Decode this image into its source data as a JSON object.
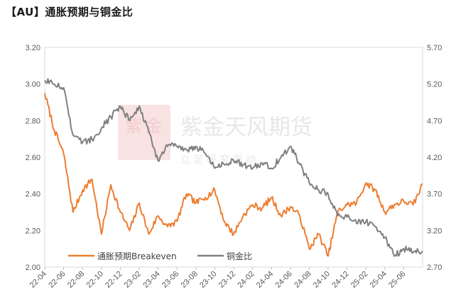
{
  "title": "【AU】通胀预期与铜金比",
  "watermark": {
    "name": "紫金天风期货",
    "slogan": "立 足 研 究 驱 动"
  },
  "chart_data": {
    "type": "line",
    "x_tick_labels": [
      "22-04",
      "22-06",
      "22-08",
      "22-10",
      "22-12",
      "23-02",
      "23-04",
      "23-06",
      "23-08",
      "23-10",
      "23-12",
      "24-02",
      "24-04",
      "24-06",
      "24-08",
      "24-10",
      "24-12",
      "25-02",
      "25-04",
      "25-06"
    ],
    "x_range": [
      "2022-04",
      "2025-08"
    ],
    "left_axis": {
      "ticks": [
        "2.00",
        "2.20",
        "2.40",
        "2.60",
        "2.80",
        "3.00",
        "3.20"
      ],
      "ylim": [
        2.0,
        3.2
      ]
    },
    "right_axis": {
      "ticks": [
        "2.70",
        "3.20",
        "3.70",
        "4.20",
        "4.70",
        "5.20",
        "5.70"
      ],
      "ylim": [
        2.7,
        5.7
      ]
    },
    "legend_position": "bottom-left",
    "series": [
      {
        "name": "通胀预期Breakeven",
        "axis": "left",
        "color": "#ED7D31",
        "x": [
          "2022-04",
          "2022-05",
          "2022-06",
          "2022-07",
          "2022-08",
          "2022-09",
          "2022-10",
          "2022-11",
          "2022-12",
          "2023-01",
          "2023-02",
          "2023-03",
          "2023-04",
          "2023-05",
          "2023-06",
          "2023-07",
          "2023-08",
          "2023-09",
          "2023-10",
          "2023-11",
          "2023-12",
          "2024-01",
          "2024-02",
          "2024-03",
          "2024-04",
          "2024-05",
          "2024-06",
          "2024-07",
          "2024-08",
          "2024-09",
          "2024-10",
          "2024-11",
          "2024-12",
          "2025-01",
          "2025-02",
          "2025-03",
          "2025-04",
          "2025-05",
          "2025-06",
          "2025-07",
          "2025-08"
        ],
        "values": [
          2.95,
          2.75,
          2.62,
          2.3,
          2.42,
          2.48,
          2.18,
          2.45,
          2.3,
          2.2,
          2.35,
          2.18,
          2.28,
          2.22,
          2.25,
          2.4,
          2.35,
          2.38,
          2.42,
          2.25,
          2.18,
          2.28,
          2.34,
          2.32,
          2.38,
          2.28,
          2.33,
          2.28,
          2.1,
          2.18,
          2.06,
          2.3,
          2.34,
          2.35,
          2.46,
          2.42,
          2.3,
          2.34,
          2.36,
          2.34,
          2.45
        ]
      },
      {
        "name": "铜金比",
        "axis": "right",
        "color": "#808080",
        "x": [
          "2022-04",
          "2022-05",
          "2022-06",
          "2022-07",
          "2022-08",
          "2022-09",
          "2022-10",
          "2022-11",
          "2022-12",
          "2023-01",
          "2023-02",
          "2023-03",
          "2023-04",
          "2023-05",
          "2023-06",
          "2023-07",
          "2023-08",
          "2023-09",
          "2023-10",
          "2023-11",
          "2023-12",
          "2024-01",
          "2024-02",
          "2024-03",
          "2024-04",
          "2024-05",
          "2024-06",
          "2024-07",
          "2024-08",
          "2024-09",
          "2024-10",
          "2024-11",
          "2024-12",
          "2025-01",
          "2025-02",
          "2025-03",
          "2025-04",
          "2025-05",
          "2025-06",
          "2025-07",
          "2025-08"
        ],
        "values": [
          5.25,
          5.2,
          5.15,
          4.5,
          4.4,
          4.45,
          4.6,
          4.75,
          4.9,
          4.7,
          4.9,
          4.55,
          4.15,
          4.35,
          4.35,
          4.3,
          4.35,
          4.25,
          4.05,
          4.1,
          4.15,
          4.1,
          4.05,
          4.12,
          4.05,
          4.2,
          4.35,
          4.1,
          3.85,
          3.75,
          3.7,
          3.4,
          3.38,
          3.3,
          3.32,
          3.25,
          3.1,
          2.85,
          2.95,
          2.9,
          2.92
        ]
      }
    ]
  }
}
